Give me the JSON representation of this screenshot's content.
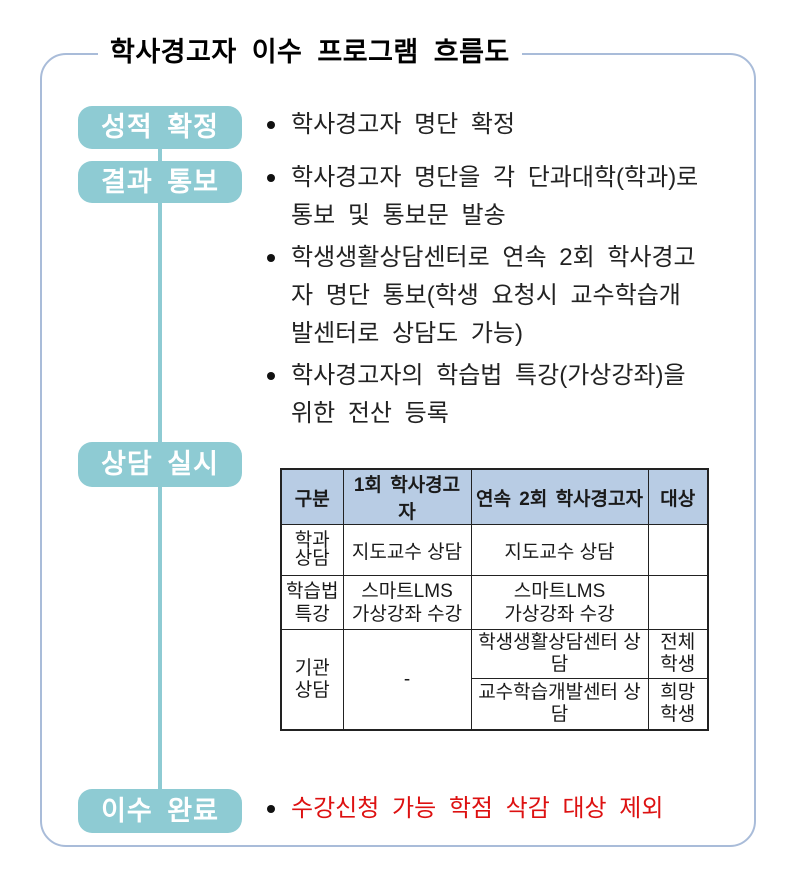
{
  "title": "학사경고자 이수 프로그램 흐름도",
  "colors": {
    "stage_box": "#8ecbd3",
    "frame_border": "#a9bcd9",
    "table_header_bg": "#b8cce4",
    "table_border": "#222222",
    "highlight_red": "#dd1111"
  },
  "stages": [
    {
      "label": "성적 확정"
    },
    {
      "label": "결과 통보"
    },
    {
      "label": "상담 실시"
    },
    {
      "label": "이수 완료"
    }
  ],
  "bullets": {
    "grade": [
      "학사경고자 명단 확정"
    ],
    "notify": [
      "학사경고자 명단을 각 단과대학(학과)로\n통보 및 통보문 발송",
      "학생생활상담센터로 연속 2회 학사경고\n자 명단 통보(학생 요청시 교수학습개\n발센터로 상담도 가능)",
      "학사경고자의 학습법 특강(가상강좌)을\n위한 전산 등록"
    ],
    "complete": [
      "수강신청 가능 학점 삭감 대상 제외"
    ]
  },
  "table": {
    "headers": [
      "구분",
      "1회 학사경고자",
      "연속 2회 학사경고자",
      "대상"
    ],
    "rows": {
      "dept": {
        "label": "학과\n상담",
        "first": "지도교수 상담",
        "second": "지도교수 상담",
        "target": ""
      },
      "lecture": {
        "label": "학습법\n특강",
        "first": "스마트LMS\n가상강좌 수강",
        "second": "스마트LMS\n가상강좌 수강",
        "target": ""
      },
      "org": {
        "label": "기관\n상담",
        "first": "-",
        "sub1": {
          "second": "학생생활상담센터 상담",
          "target": "전체\n학생"
        },
        "sub2": {
          "second": "교수학습개발센터 상담",
          "target": "희망\n학생"
        }
      }
    }
  }
}
